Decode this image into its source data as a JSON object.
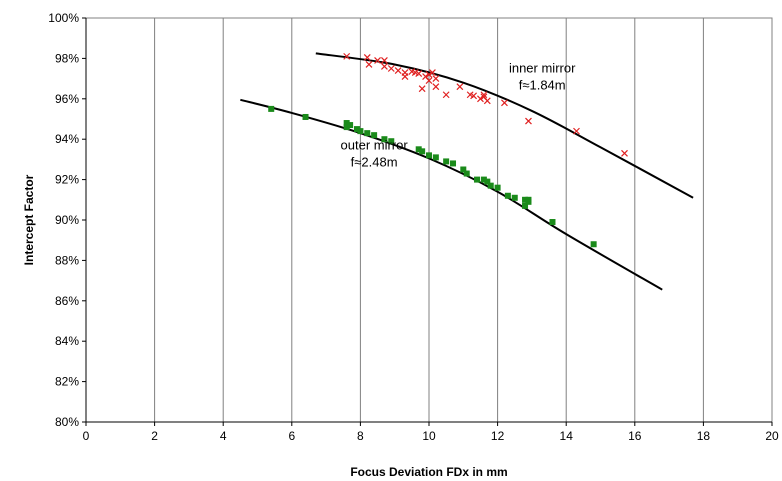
{
  "chart_data": {
    "type": "scatter",
    "xlabel": "Focus Deviation FDx in mm",
    "ylabel": "Intercept Factor",
    "xlim": [
      0,
      20
    ],
    "ylim": [
      80,
      100
    ],
    "x_ticks": [
      "0",
      "2",
      "4",
      "6",
      "8",
      "10",
      "12",
      "14",
      "16",
      "18",
      "20"
    ],
    "y_ticks": [
      "80%",
      "82%",
      "84%",
      "86%",
      "88%",
      "90%",
      "92%",
      "94%",
      "96%",
      "98%",
      "100%"
    ],
    "grid": "vertical",
    "legend": "none",
    "series": [
      {
        "color": "#e02020",
        "marker": "x",
        "points": [
          [
            7.6,
            98.1
          ],
          [
            8.2,
            98.05
          ],
          [
            8.25,
            97.7
          ],
          [
            8.5,
            97.9
          ],
          [
            8.7,
            97.9
          ],
          [
            8.7,
            97.6
          ],
          [
            8.9,
            97.5
          ],
          [
            9.1,
            97.4
          ],
          [
            9.3,
            97.3
          ],
          [
            9.3,
            97.1
          ],
          [
            9.5,
            97.35
          ],
          [
            9.6,
            97.3
          ],
          [
            9.7,
            97.25
          ],
          [
            9.8,
            96.5
          ],
          [
            9.9,
            97.1
          ],
          [
            10.0,
            97.2
          ],
          [
            10.0,
            96.9
          ],
          [
            10.1,
            97.3
          ],
          [
            10.2,
            97.0
          ],
          [
            10.2,
            96.6
          ],
          [
            10.5,
            96.2
          ],
          [
            10.9,
            96.6
          ],
          [
            11.2,
            96.2
          ],
          [
            11.3,
            96.15
          ],
          [
            11.5,
            96.0
          ],
          [
            11.6,
            96.2
          ],
          [
            11.6,
            96.1
          ],
          [
            11.7,
            95.9
          ],
          [
            12.2,
            95.8
          ],
          [
            12.9,
            94.9
          ],
          [
            14.3,
            94.4
          ],
          [
            15.7,
            93.3
          ]
        ],
        "fit_curve": [
          [
            6.7,
            98.25
          ],
          [
            9,
            97.7
          ],
          [
            11,
            96.8
          ],
          [
            13,
            95.4
          ],
          [
            15,
            93.6
          ],
          [
            17.7,
            91.1
          ]
        ]
      },
      {
        "color": "#1a8a1a",
        "marker": "square",
        "points": [
          [
            5.4,
            95.5
          ],
          [
            6.4,
            95.1
          ],
          [
            7.6,
            94.8
          ],
          [
            7.6,
            94.6
          ],
          [
            7.7,
            94.7
          ],
          [
            7.9,
            94.5
          ],
          [
            8.0,
            94.4
          ],
          [
            8.2,
            94.3
          ],
          [
            8.4,
            94.2
          ],
          [
            8.7,
            94.0
          ],
          [
            8.9,
            93.9
          ],
          [
            9.7,
            93.5
          ],
          [
            9.8,
            93.4
          ],
          [
            10.0,
            93.2
          ],
          [
            10.2,
            93.1
          ],
          [
            10.5,
            92.9
          ],
          [
            10.7,
            92.8
          ],
          [
            11.0,
            92.5
          ],
          [
            11.1,
            92.3
          ],
          [
            11.4,
            92.0
          ],
          [
            11.6,
            92.0
          ],
          [
            11.7,
            91.9
          ],
          [
            11.8,
            91.7
          ],
          [
            12.0,
            91.6
          ],
          [
            12.3,
            91.2
          ],
          [
            12.5,
            91.1
          ],
          [
            12.8,
            91.0
          ],
          [
            12.8,
            90.7
          ],
          [
            12.9,
            90.9
          ],
          [
            12.9,
            91.0
          ],
          [
            13.6,
            89.9
          ],
          [
            14.8,
            88.8
          ]
        ],
        "fit_curve": [
          [
            4.5,
            95.95
          ],
          [
            6,
            95.3
          ],
          [
            8,
            94.3
          ],
          [
            10,
            93.05
          ],
          [
            12,
            91.4
          ],
          [
            14,
            89.3
          ],
          [
            16.8,
            86.55
          ]
        ]
      }
    ],
    "annotations": [
      {
        "lines": [
          "inner mirror",
          "f≈1.84m"
        ],
        "x": 13.3,
        "y": 97.3
      },
      {
        "lines": [
          "outer mirror",
          "f≈2.48m"
        ],
        "x": 8.4,
        "y": 93.5
      }
    ]
  }
}
